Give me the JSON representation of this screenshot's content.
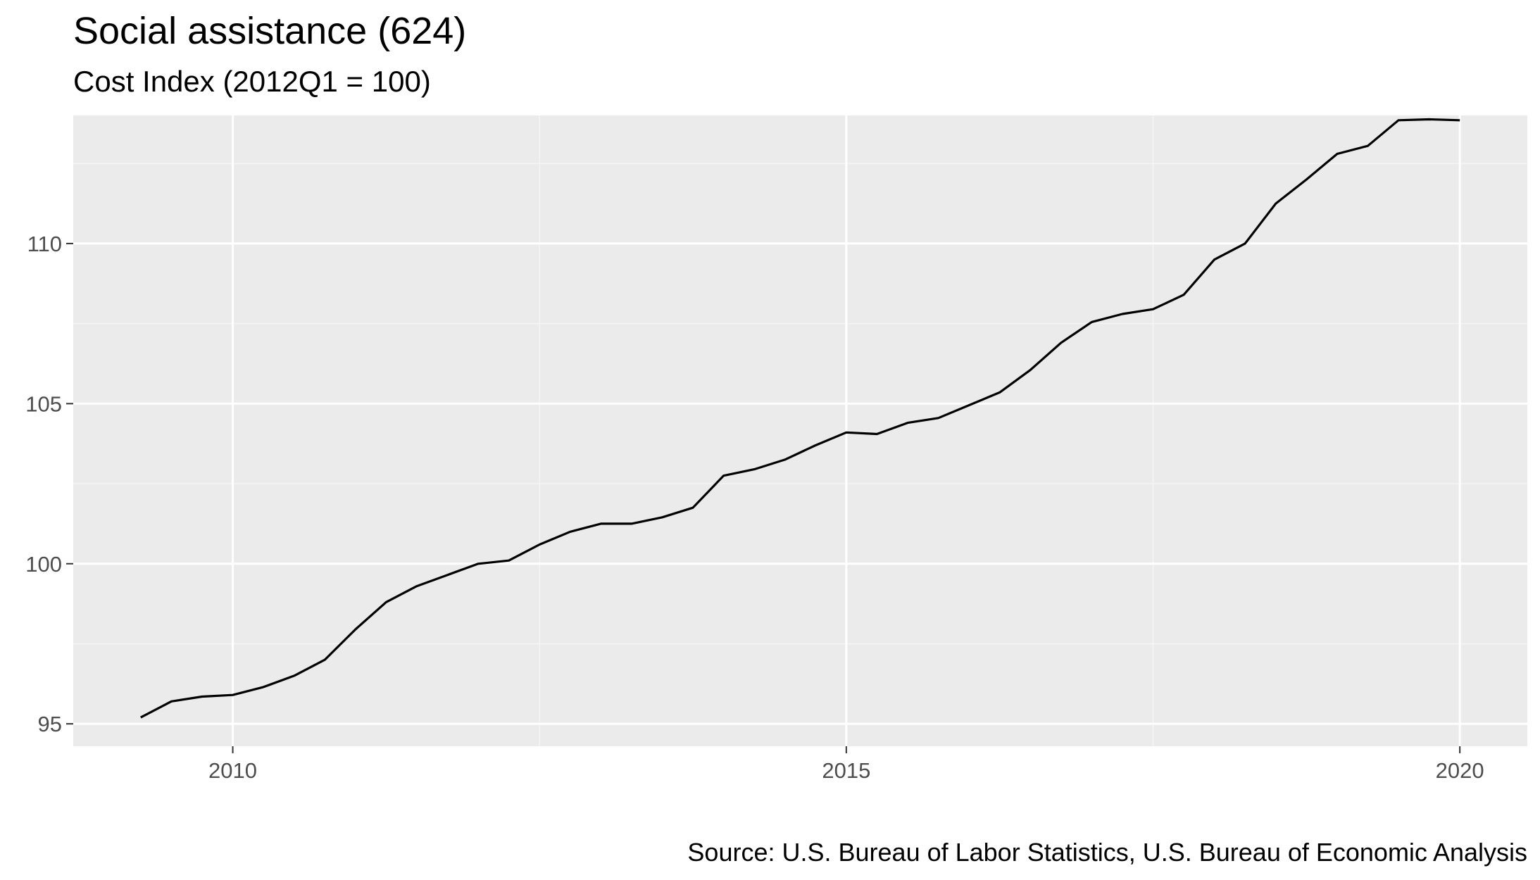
{
  "chart_data": {
    "type": "line",
    "title": "Social assistance (624)",
    "subtitle": "Cost Index (2012Q1 = 100)",
    "caption": "Source: U.S. Bureau of Labor Statistics, U.S. Bureau of Economic Analysis",
    "xlabel": "",
    "ylabel": "",
    "xlim": [
      2008.7,
      2020.55
    ],
    "ylim": [
      94.3,
      114.0
    ],
    "x_ticks": [
      2010,
      2015,
      2020
    ],
    "x_tick_labels": [
      "2010",
      "2015",
      "2020"
    ],
    "y_ticks": [
      95,
      100,
      105,
      110
    ],
    "y_tick_labels": [
      "95",
      "100",
      "105",
      "110"
    ],
    "grid": true,
    "legend": "none",
    "colors": {
      "panel_background": "#ebebeb",
      "grid_major": "#ffffff",
      "grid_minor": "#f5f5f5",
      "line": "#000000",
      "tick_label": "#4d4d4d",
      "axis_tick": "#333333"
    },
    "series": [
      {
        "x": [
          2009.25,
          2009.5,
          2009.75,
          2010.0,
          2010.25,
          2010.5,
          2010.75,
          2011.0,
          2011.25,
          2011.5,
          2011.75,
          2012.0,
          2012.25,
          2012.5,
          2012.75,
          2013.0,
          2013.25,
          2013.5,
          2013.75,
          2014.0,
          2014.25,
          2014.5,
          2014.75,
          2015.0,
          2015.25,
          2015.5,
          2015.75,
          2016.0,
          2016.25,
          2016.5,
          2016.75,
          2017.0,
          2017.25,
          2017.5,
          2017.75,
          2018.0,
          2018.25,
          2018.5,
          2018.75,
          2019.0,
          2019.25,
          2019.5,
          2019.75,
          2020.0
        ],
        "values": [
          95.2,
          95.7,
          95.85,
          95.9,
          96.15,
          96.5,
          97.0,
          97.95,
          98.8,
          99.3,
          99.65,
          100.0,
          100.1,
          100.6,
          101.0,
          101.25,
          101.25,
          101.45,
          101.75,
          102.75,
          102.95,
          103.25,
          103.7,
          104.1,
          104.05,
          104.4,
          104.55,
          104.95,
          105.35,
          106.05,
          106.9,
          107.55,
          107.8,
          107.95,
          108.4,
          109.5,
          110.0,
          111.25,
          112.0,
          112.8,
          113.05,
          113.85,
          113.88,
          113.85
        ]
      }
    ]
  }
}
